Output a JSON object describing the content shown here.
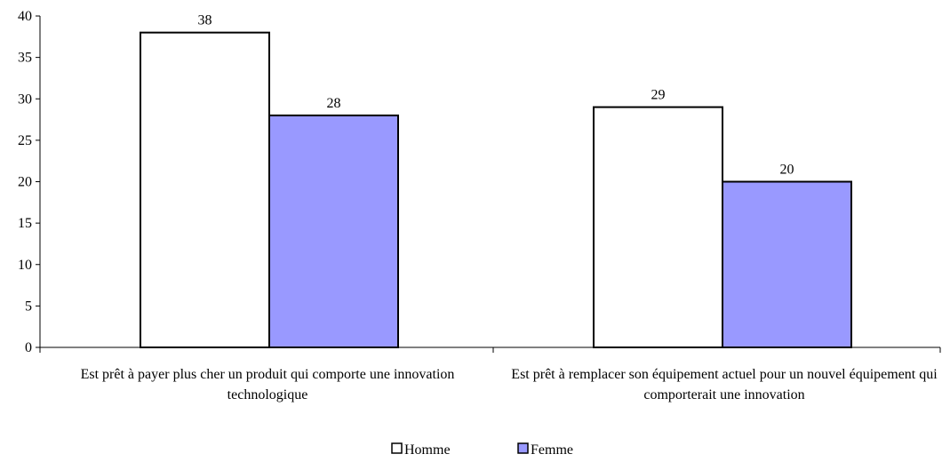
{
  "chart_data": {
    "type": "bar",
    "categories": [
      "Est prêt à payer plus cher un produit qui comporte une innovation technologique",
      "Est prêt à remplacer son équipement actuel pour un nouvel équipement qui comporterait une innovation"
    ],
    "series": [
      {
        "name": "Homme",
        "color": "#ffffff",
        "values": [
          38,
          29
        ]
      },
      {
        "name": "Femme",
        "color": "#9999ff",
        "values": [
          28,
          20
        ]
      }
    ],
    "ylim": [
      0,
      40
    ],
    "yticks": [
      0,
      5,
      10,
      15,
      20,
      25,
      30,
      35,
      40
    ],
    "grid": false,
    "legend": "bottom"
  }
}
